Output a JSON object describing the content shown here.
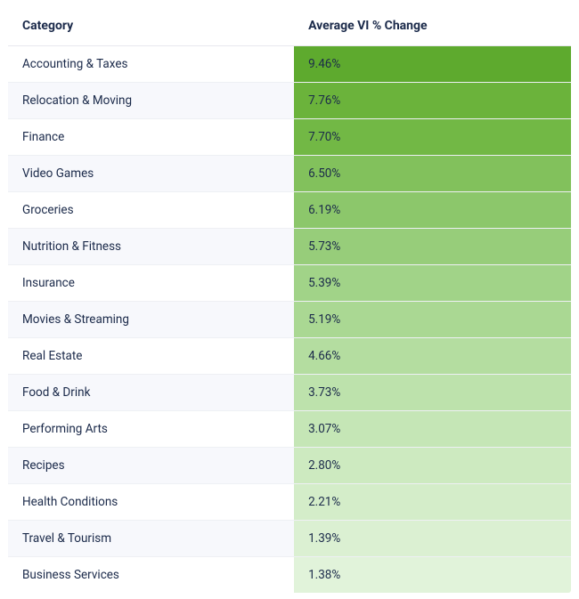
{
  "table": {
    "type": "table",
    "columns": [
      {
        "key": "category",
        "label": "Category",
        "width_pct": 50.8,
        "align": "left"
      },
      {
        "key": "avg_vi_pct_change",
        "label": "Average VI % Change",
        "width_pct": 49.2,
        "align": "left"
      }
    ],
    "rows": [
      {
        "category": "Accounting & Taxes",
        "value": "9.46%",
        "value_bg": "#5eaa2e"
      },
      {
        "category": "Relocation & Moving",
        "value": "7.76%",
        "value_bg": "#6bb33b"
      },
      {
        "category": "Finance",
        "value": "7.70%",
        "value_bg": "#72b845"
      },
      {
        "category": "Video Games",
        "value": "6.50%",
        "value_bg": "#82c15c"
      },
      {
        "category": "Groceries",
        "value": "6.19%",
        "value_bg": "#8cc76b"
      },
      {
        "category": "Nutrition & Fitness",
        "value": "5.73%",
        "value_bg": "#97cd7a"
      },
      {
        "category": "Insurance",
        "value": "5.39%",
        "value_bg": "#a1d388"
      },
      {
        "category": "Movies & Streaming",
        "value": "5.19%",
        "value_bg": "#aad893"
      },
      {
        "category": "Real Estate",
        "value": "4.66%",
        "value_bg": "#b4dda0"
      },
      {
        "category": "Food & Drink",
        "value": "3.73%",
        "value_bg": "#bde2ac"
      },
      {
        "category": "Performing Arts",
        "value": "3.07%",
        "value_bg": "#c5e6b6"
      },
      {
        "category": "Recipes",
        "value": "2.80%",
        "value_bg": "#cdeac0"
      },
      {
        "category": "Health Conditions",
        "value": "2.21%",
        "value_bg": "#d4edc9"
      },
      {
        "category": "Travel & Tourism",
        "value": "1.39%",
        "value_bg": "#dbf0d2"
      },
      {
        "category": "Business Services",
        "value": "1.38%",
        "value_bg": "#e1f3da"
      }
    ],
    "style": {
      "header_bg": "#ffffff",
      "header_text_color": "#1b2a4a",
      "row_even_bg": "#f7f8fc",
      "row_odd_bg": "#ffffff",
      "border_color": "#e8e8ee",
      "text_color": "#1b2a4a",
      "header_fontsize": 14,
      "cell_fontsize": 13.5
    }
  }
}
